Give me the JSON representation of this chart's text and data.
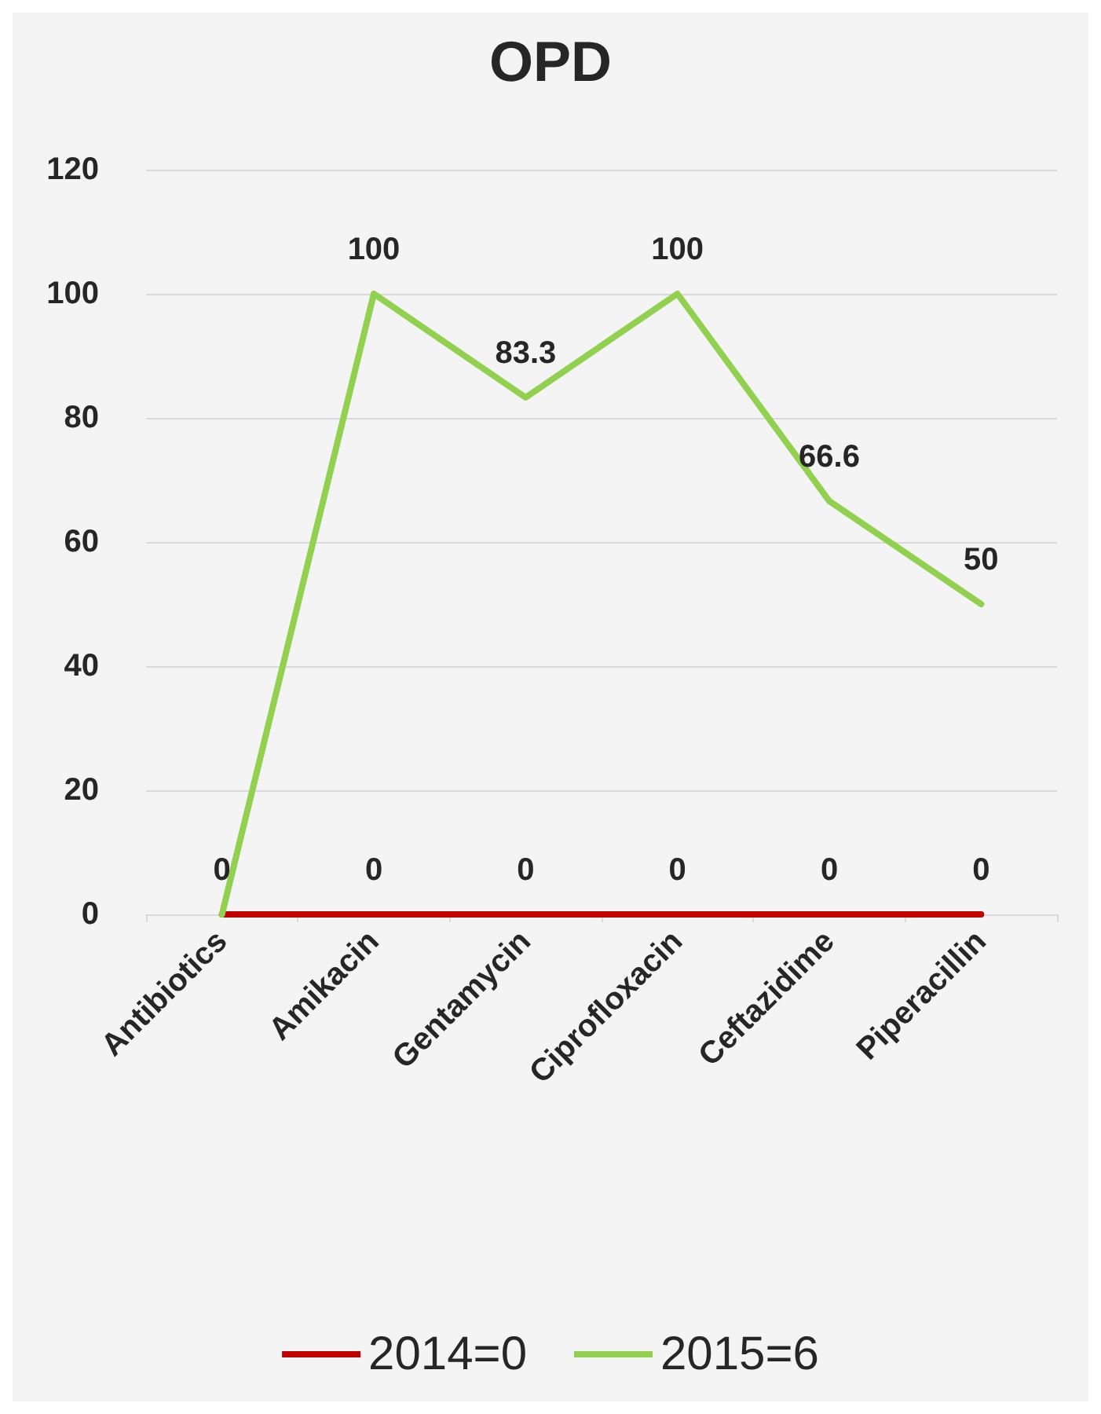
{
  "chart_data": {
    "type": "line",
    "title": "OPD",
    "categories": [
      "Antibiotics",
      "Amikacin",
      "Gentamycin",
      "Ciprofloxacin",
      "Ceftazidime",
      "Piperacillin"
    ],
    "series": [
      {
        "name": "2014=0",
        "color": "#c00000",
        "values": [
          0,
          0,
          0,
          0,
          0,
          0
        ],
        "value_labels": [
          "0",
          "0",
          "0",
          "0",
          "0",
          "0"
        ]
      },
      {
        "name": "2015=6",
        "color": "#92d050",
        "values": [
          0,
          100,
          83.3,
          100,
          66.6,
          50
        ],
        "value_labels": [
          null,
          "100",
          "83.3",
          "100",
          "66.6",
          "50"
        ]
      }
    ],
    "ylim": [
      0,
      120
    ],
    "yticks": [
      0,
      20,
      40,
      60,
      80,
      100,
      120
    ],
    "grid": "y",
    "legend": "bottom",
    "marker": "none",
    "line_style": "solid"
  }
}
